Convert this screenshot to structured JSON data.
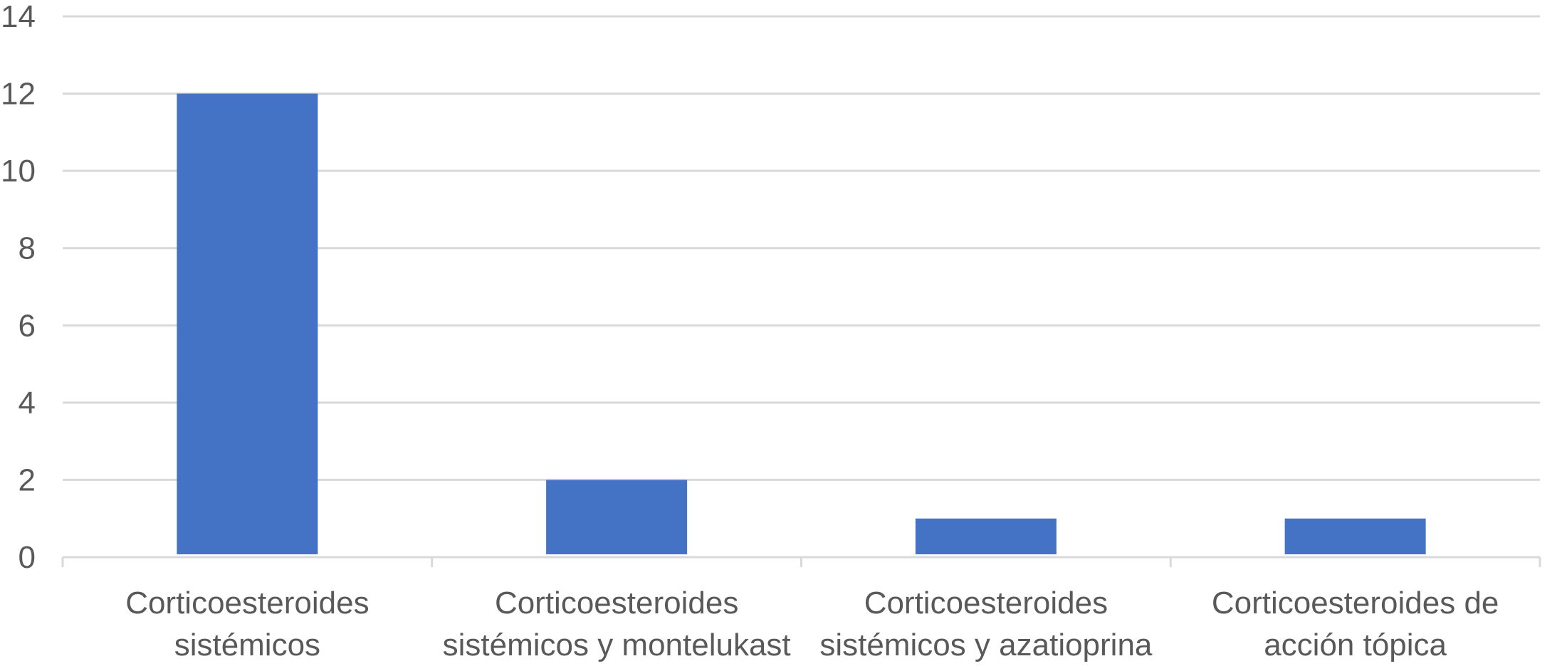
{
  "chart_data": {
    "type": "bar",
    "categories": [
      [
        "Corticoesteroides",
        "sistémicos"
      ],
      [
        "Corticoesteroides",
        "sistémicos y montelukast"
      ],
      [
        "Corticoesteroides",
        "sistémicos y azatioprina"
      ],
      [
        "Corticoesteroides de",
        "acción tópica"
      ]
    ],
    "values": [
      12,
      2,
      1,
      1
    ],
    "ylim": [
      0,
      14
    ],
    "yticks": [
      0,
      2,
      4,
      6,
      8,
      10,
      12,
      14
    ],
    "grid": true,
    "legend": "none",
    "title": "",
    "xlabel": "",
    "ylabel": ""
  },
  "colors": {
    "bar": "#4472C4",
    "grid": "#D9D9D9",
    "text": "#595959"
  }
}
